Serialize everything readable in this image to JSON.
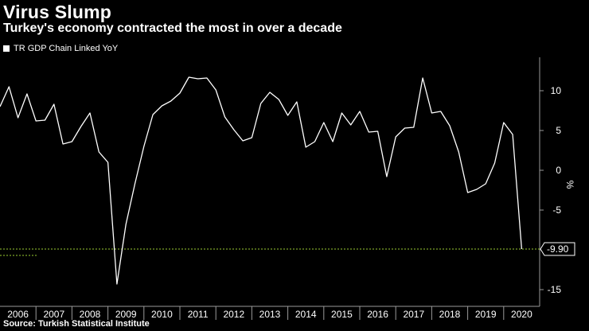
{
  "header": {
    "title": "Virus Slump",
    "subtitle": "Turkey's economy contracted the most in over a decade"
  },
  "legend": {
    "label": "TR GDP Chain Linked YoY"
  },
  "footer": {
    "source": "Source: Turkish Statistical Institute"
  },
  "colors": {
    "background": "#000000",
    "line": "#ffffff",
    "reference": "#9acd32",
    "grid": "#9a9a9a"
  },
  "chart_data": {
    "type": "line",
    "title": "Virus Slump",
    "subtitle": "Turkey's economy contracted the most in over a decade",
    "ylabel": "%",
    "ylim": [
      -16,
      14
    ],
    "yticks": [
      10,
      5,
      0,
      -5,
      -10,
      -15
    ],
    "ytick_labels": [
      "10",
      "5",
      "0",
      "-5",
      "",
      "-15"
    ],
    "xlim": [
      2005.75,
      2020.75
    ],
    "year_labels": [
      "2006",
      "2007",
      "2008",
      "2009",
      "2010",
      "2011",
      "2012",
      "2013",
      "2014",
      "2015",
      "2016",
      "2017",
      "2018",
      "2019",
      "2020"
    ],
    "grid": false,
    "legend_position": "top-left",
    "latest_value": -9.9,
    "latest_label": "-9.90",
    "series": [
      {
        "name": "TR GDP Chain Linked YoY",
        "x": [
          2005.75,
          2006.0,
          2006.25,
          2006.5,
          2006.75,
          2007.0,
          2007.25,
          2007.5,
          2007.75,
          2008.0,
          2008.25,
          2008.5,
          2008.75,
          2009.0,
          2009.25,
          2009.5,
          2009.75,
          2010.0,
          2010.25,
          2010.5,
          2010.75,
          2011.0,
          2011.25,
          2011.5,
          2011.75,
          2012.0,
          2012.25,
          2012.5,
          2012.75,
          2013.0,
          2013.25,
          2013.5,
          2013.75,
          2014.0,
          2014.25,
          2014.5,
          2014.75,
          2015.0,
          2015.25,
          2015.5,
          2015.75,
          2016.0,
          2016.25,
          2016.5,
          2016.75,
          2017.0,
          2017.25,
          2017.5,
          2017.75,
          2018.0,
          2018.25,
          2018.5,
          2018.75,
          2019.0,
          2019.25,
          2019.5,
          2019.75,
          2020.0,
          2020.25
        ],
        "values": [
          8.0,
          10.5,
          6.6,
          9.6,
          6.2,
          6.3,
          8.3,
          3.3,
          3.6,
          5.5,
          7.2,
          2.3,
          1.0,
          -14.3,
          -6.8,
          -1.7,
          3.0,
          7.0,
          8.1,
          8.7,
          9.7,
          11.7,
          11.5,
          11.6,
          10.1,
          6.7,
          5.1,
          3.7,
          4.1,
          8.4,
          9.8,
          8.9,
          6.9,
          8.6,
          2.9,
          3.6,
          6.0,
          3.6,
          7.2,
          5.7,
          7.4,
          4.8,
          4.9,
          -0.8,
          4.2,
          5.3,
          5.4,
          11.6,
          7.2,
          7.4,
          5.6,
          2.3,
          -2.8,
          -2.4,
          -1.7,
          0.9,
          6.0,
          4.5,
          -9.9
        ]
      }
    ]
  }
}
